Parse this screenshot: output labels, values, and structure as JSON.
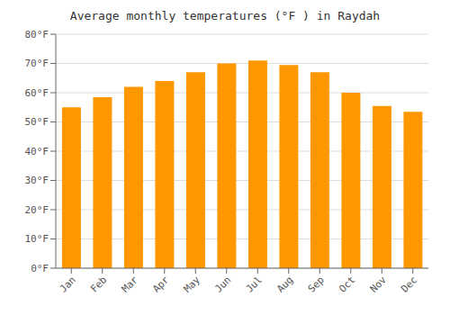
{
  "chart_data": {
    "type": "bar",
    "title": "Average monthly temperatures (°F ) in Raydah",
    "categories": [
      "Jan",
      "Feb",
      "Mar",
      "Apr",
      "May",
      "Jun",
      "Jul",
      "Aug",
      "Sep",
      "Oct",
      "Nov",
      "Dec"
    ],
    "values": [
      55,
      58.5,
      62,
      64,
      67,
      70,
      71,
      69.5,
      67,
      60,
      55.5,
      53.5
    ],
    "color": "#FF9800",
    "ylim": [
      0,
      80
    ],
    "yticks": [
      {
        "value": 0,
        "label": "0°F"
      },
      {
        "value": 10,
        "label": "10°F"
      },
      {
        "value": 20,
        "label": "20°F"
      },
      {
        "value": 30,
        "label": "30°F"
      },
      {
        "value": 40,
        "label": "40°F"
      },
      {
        "value": 50,
        "label": "50°F"
      },
      {
        "value": 60,
        "label": "60°F"
      },
      {
        "value": 70,
        "label": "70°F"
      },
      {
        "value": 80,
        "label": "80°F"
      }
    ],
    "grid": true
  }
}
